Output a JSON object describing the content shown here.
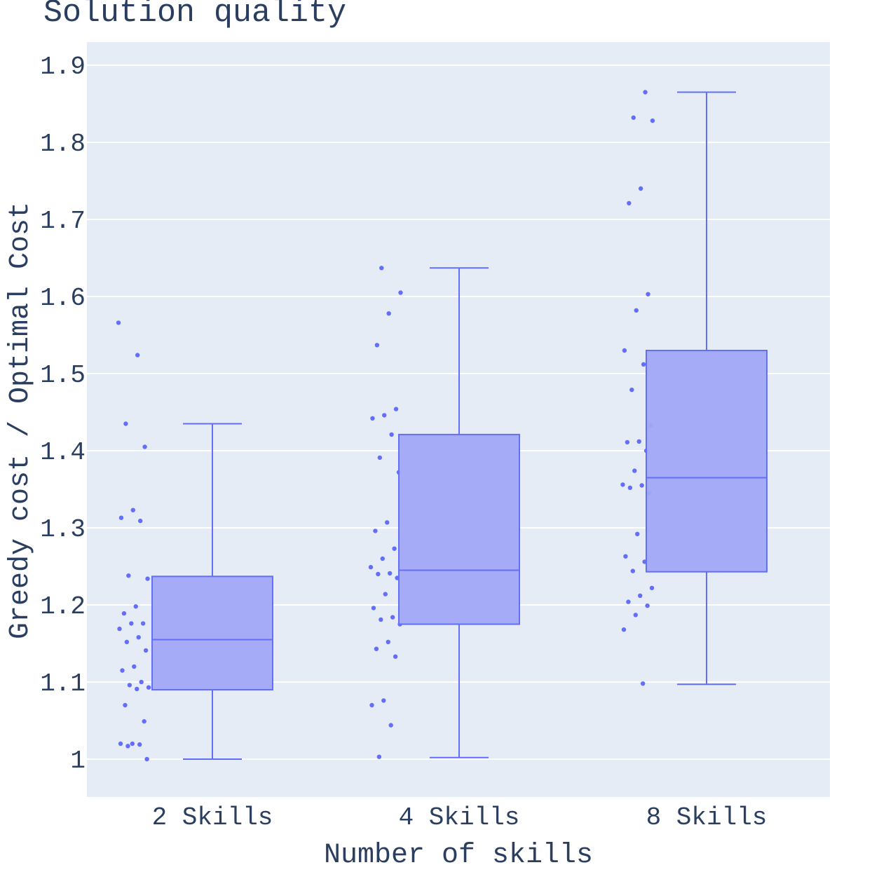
{
  "chart_data": {
    "type": "box",
    "title": "Solution quality",
    "xlabel": "Number of skills",
    "ylabel": "Greedy cost / Optimal Cost",
    "ylim": [
      0.95,
      1.93
    ],
    "y_ticks": [
      1,
      1.1,
      1.2,
      1.3,
      1.4,
      1.5,
      1.6,
      1.7,
      1.8,
      1.9
    ],
    "y_tick_labels": [
      "1",
      "1.1",
      "1.2",
      "1.3",
      "1.4",
      "1.5",
      "1.6",
      "1.7",
      "1.8",
      "1.9"
    ],
    "grid": true,
    "legend": "none",
    "categories": [
      "2 Skills",
      "4 Skills",
      "8 Skills"
    ],
    "colors": {
      "plot_bg": "#e5ecf6",
      "grid": "#ffffff",
      "box_line": "#636efa",
      "box_fill": "#a1a8f5",
      "point": "#636efa",
      "text": "#2a3f5f"
    },
    "boxes": [
      {
        "category": "2 Skills",
        "min": 1.0,
        "q1": 1.09,
        "median": 1.155,
        "q3": 1.237,
        "max": 1.435,
        "points": [
          1.566,
          1.524,
          1.435,
          1.405,
          1.323,
          1.313,
          1.309,
          1.238,
          1.234,
          1.198,
          1.189,
          1.176,
          1.176,
          1.169,
          1.158,
          1.152,
          1.141,
          1.12,
          1.115,
          1.1,
          1.096,
          1.093,
          1.091,
          1.07,
          1.049,
          1.02,
          1.02,
          1.019,
          1.017,
          1.0
        ]
      },
      {
        "category": "4 Skills",
        "min": 1.002,
        "q1": 1.175,
        "median": 1.245,
        "q3": 1.421,
        "max": 1.637,
        "points": [
          1.637,
          1.605,
          1.578,
          1.537,
          1.454,
          1.446,
          1.442,
          1.421,
          1.391,
          1.372,
          1.307,
          1.296,
          1.273,
          1.26,
          1.249,
          1.241,
          1.24,
          1.235,
          1.214,
          1.196,
          1.184,
          1.181,
          1.175,
          1.152,
          1.143,
          1.133,
          1.076,
          1.07,
          1.044,
          1.003
        ]
      },
      {
        "category": "8 Skills",
        "min": 1.097,
        "q1": 1.243,
        "median": 1.365,
        "q3": 1.53,
        "max": 1.865,
        "points": [
          1.865,
          1.832,
          1.828,
          1.74,
          1.721,
          1.603,
          1.582,
          1.53,
          1.512,
          1.479,
          1.433,
          1.412,
          1.411,
          1.4,
          1.374,
          1.356,
          1.355,
          1.352,
          1.345,
          1.292,
          1.263,
          1.256,
          1.244,
          1.222,
          1.212,
          1.204,
          1.199,
          1.187,
          1.168,
          1.098
        ]
      }
    ]
  }
}
